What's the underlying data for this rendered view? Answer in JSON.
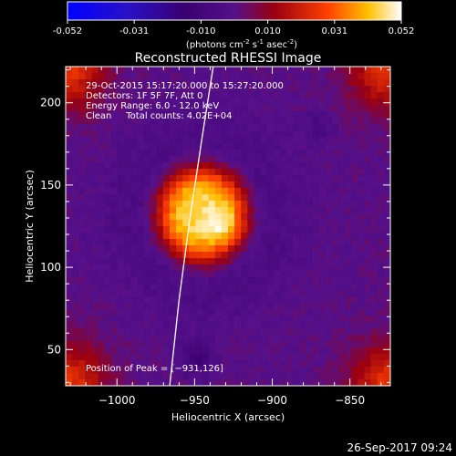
{
  "colorbar": {
    "ticks": [
      "-0.052",
      "-0.031",
      "-0.010",
      "0.010",
      "0.031",
      "0.052"
    ],
    "units_main": "(photons cm",
    "units_exp1": "-2",
    "units_mid": " s",
    "units_exp2": "-1",
    "units_end": " asec",
    "units_exp3": "-2",
    "units_close": ")",
    "colors": [
      "#0000ff",
      "#3010c0",
      "#400060",
      "#5a1090",
      "#800000",
      "#ff3000",
      "#ffc000",
      "#ffffff"
    ]
  },
  "chart_data": {
    "type": "heatmap",
    "title": "Reconstructed RHESSI Image",
    "xlabel": "Heliocentric X (arcsec)",
    "ylabel": "Heliocentric Y (arcsec)",
    "xlim": [
      -1033,
      -824
    ],
    "ylim": [
      28,
      222
    ],
    "x_ticks": [
      -1000,
      -950,
      -900,
      -850
    ],
    "x_tick_labels": [
      "−1000",
      "−950",
      "−900",
      "−850"
    ],
    "y_ticks": [
      50,
      100,
      150,
      200
    ],
    "y_tick_labels": [
      "50",
      "100",
      "150",
      "200"
    ],
    "value_range": [
      -0.052,
      0.052
    ],
    "peak": {
      "x": -931,
      "y": 126
    },
    "source_center": {
      "x": -945,
      "y": 132
    },
    "limb_curve": [
      [
        -966,
        28
      ],
      [
        -960,
        80
      ],
      [
        -953,
        130
      ],
      [
        -945,
        180
      ],
      [
        -938,
        222
      ]
    ],
    "annotations": [
      "29-Oct-2015 15:17:20.000 to 15:27:20.000",
      "Detectors: 1F 5F 7F, Att 0",
      "Energy Range: 6.0 - 12.0 keV",
      "Clean     Total counts: 4.02E+04"
    ],
    "peak_label": "Position of Peak = [−931,126]"
  },
  "footer": {
    "timestamp": "26-Sep-2017 09:24"
  }
}
